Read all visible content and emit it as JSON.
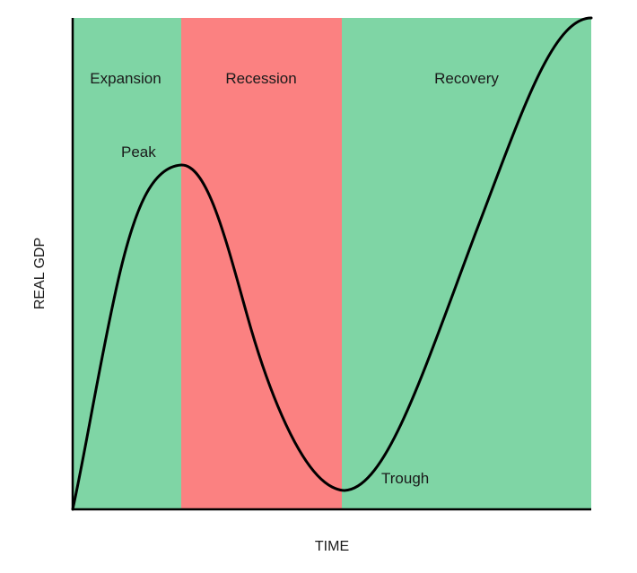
{
  "diagram": {
    "x_axis_label": "TIME",
    "y_axis_label": "REAL GDP",
    "phases": [
      {
        "label": "Expansion",
        "color": "#7fd5a5"
      },
      {
        "label": "Recession",
        "color": "#fb8181"
      },
      {
        "label": "Recovery",
        "color": "#7fd5a5"
      }
    ],
    "points": {
      "peak": "Peak",
      "trough": "Trough"
    },
    "curve_color": "#000000",
    "axis_color": "#000000"
  }
}
